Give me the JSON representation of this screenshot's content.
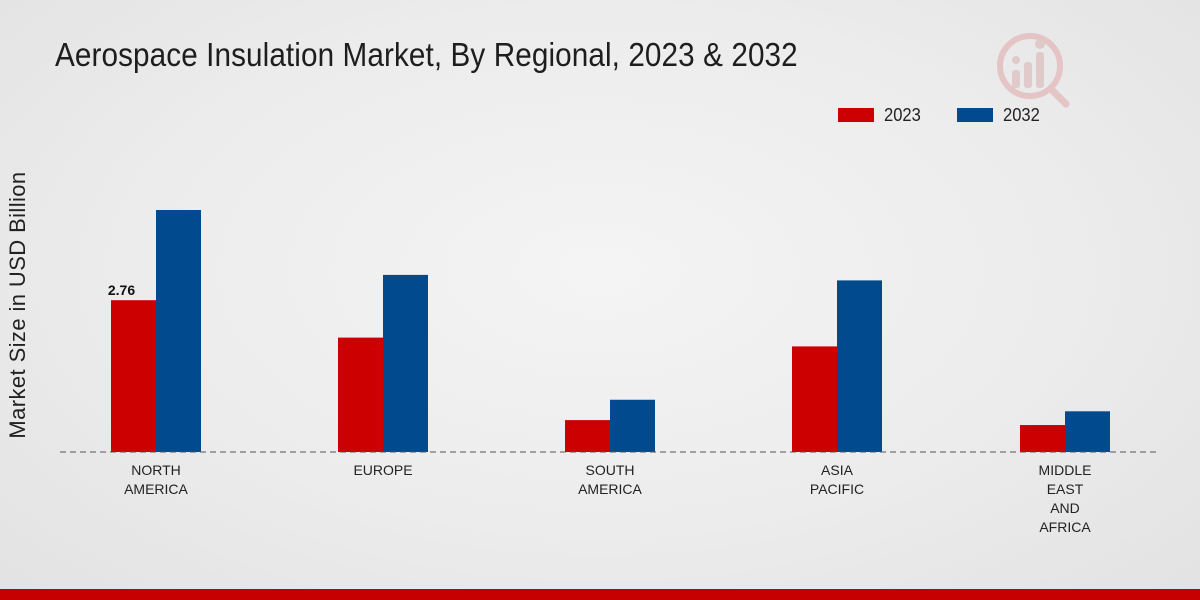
{
  "header": {
    "title": "Aerospace Insulation Market, By Regional, 2023 & 2032"
  },
  "legend": {
    "items": [
      {
        "label": "2023",
        "color": "#cc0000"
      },
      {
        "label": "2032",
        "color": "#004a8d"
      }
    ]
  },
  "chart_data": {
    "type": "bar",
    "title": "Aerospace Insulation Market, By Regional, 2023 & 2032",
    "xlabel": "",
    "ylabel": "Market Size in USD Billion",
    "categories": [
      [
        "NORTH",
        "AMERICA"
      ],
      [
        "EUROPE"
      ],
      [
        "SOUTH",
        "AMERICA"
      ],
      [
        "ASIA",
        "PACIFIC"
      ],
      [
        "MIDDLE",
        "EAST",
        "AND",
        "AFRICA"
      ]
    ],
    "series": [
      {
        "name": "2023",
        "color": "#cc0000",
        "values": [
          2.76,
          2.08,
          0.58,
          1.92,
          0.49
        ]
      },
      {
        "name": "2032",
        "color": "#004a8d",
        "values": [
          4.4,
          3.22,
          0.95,
          3.12,
          0.74
        ]
      }
    ],
    "data_labels": [
      {
        "series": 0,
        "index": 0,
        "text": "2.76"
      }
    ],
    "ylim": [
      0,
      6.4
    ],
    "grid": false,
    "legend_position": "top-right"
  }
}
